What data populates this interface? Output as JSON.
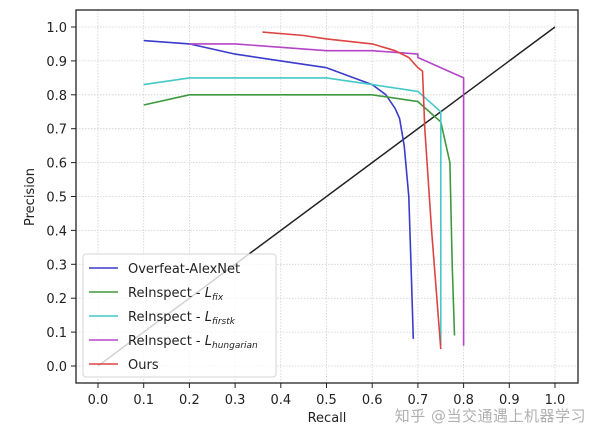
{
  "chart_data": {
    "type": "line",
    "title": "",
    "xlabel": "Recall",
    "ylabel": "Precision",
    "xlim": [
      -0.05,
      1.05
    ],
    "ylim": [
      -0.05,
      1.05
    ],
    "xticks": [
      0.0,
      0.1,
      0.2,
      0.3,
      0.4,
      0.5,
      0.6,
      0.7,
      0.8,
      0.9,
      1.0
    ],
    "yticks": [
      0.0,
      0.1,
      0.2,
      0.3,
      0.4,
      0.5,
      0.6,
      0.7,
      0.8,
      0.9,
      1.0
    ],
    "xtick_labels": [
      "0.0",
      "0.1",
      "0.2",
      "0.3",
      "0.4",
      "0.5",
      "0.6",
      "0.7",
      "0.8",
      "0.9",
      "1.0"
    ],
    "ytick_labels": [
      "0.0",
      "0.1",
      "0.2",
      "0.3",
      "0.4",
      "0.5",
      "0.6",
      "0.7",
      "0.8",
      "0.9",
      "1.0"
    ],
    "grid": true,
    "legend_position": "lower left",
    "series": [
      {
        "name": "Overfeat-AlexNet",
        "legend_main": "Overfeat-AlexNet",
        "legend_sub": "",
        "color": "#3b3bcc",
        "x": [
          0.1,
          0.2,
          0.3,
          0.4,
          0.5,
          0.55,
          0.6,
          0.63,
          0.65,
          0.66,
          0.67,
          0.68,
          0.685,
          0.69
        ],
        "y": [
          0.96,
          0.95,
          0.92,
          0.9,
          0.88,
          0.855,
          0.83,
          0.8,
          0.76,
          0.73,
          0.65,
          0.5,
          0.3,
          0.08
        ]
      },
      {
        "name": "ReInspect - L_fix",
        "legend_main": "ReInspect - ",
        "legend_L": "L",
        "legend_sub": "fix",
        "color": "#3f993f",
        "x": [
          0.1,
          0.2,
          0.3,
          0.4,
          0.5,
          0.6,
          0.7,
          0.75,
          0.77,
          0.775,
          0.78
        ],
        "y": [
          0.77,
          0.8,
          0.8,
          0.8,
          0.8,
          0.8,
          0.78,
          0.72,
          0.6,
          0.3,
          0.09
        ]
      },
      {
        "name": "ReInspect - L_firstk",
        "legend_main": "ReInspect - ",
        "legend_L": "L",
        "legend_sub": "firstk",
        "color": "#45c8c8",
        "x": [
          0.1,
          0.2,
          0.3,
          0.4,
          0.5,
          0.6,
          0.7,
          0.75,
          0.75,
          0.75
        ],
        "y": [
          0.83,
          0.85,
          0.85,
          0.85,
          0.85,
          0.83,
          0.81,
          0.75,
          0.4,
          0.06
        ]
      },
      {
        "name": "ReInspect - L_hungarian",
        "legend_main": "ReInspect - ",
        "legend_L": "L",
        "legend_sub": "hungarian",
        "color": "#b545c8",
        "x": [
          0.2,
          0.3,
          0.4,
          0.5,
          0.6,
          0.7,
          0.7,
          0.8,
          0.8
        ],
        "y": [
          0.95,
          0.95,
          0.94,
          0.93,
          0.93,
          0.92,
          0.91,
          0.85,
          0.06
        ]
      },
      {
        "name": "Ours",
        "legend_main": "Ours",
        "legend_sub": "",
        "color": "#dd4444",
        "x": [
          0.36,
          0.45,
          0.5,
          0.6,
          0.65,
          0.68,
          0.7,
          0.71,
          0.715,
          0.73,
          0.75
        ],
        "y": [
          0.985,
          0.975,
          0.965,
          0.95,
          0.93,
          0.91,
          0.88,
          0.87,
          0.7,
          0.4,
          0.05
        ]
      }
    ],
    "reference_line": {
      "name": "diagonal y=x",
      "color": "#222222",
      "x": [
        0.0,
        1.0
      ],
      "y": [
        0.0,
        1.0
      ]
    }
  },
  "watermark": "知乎 @当交通遇上机器学习"
}
